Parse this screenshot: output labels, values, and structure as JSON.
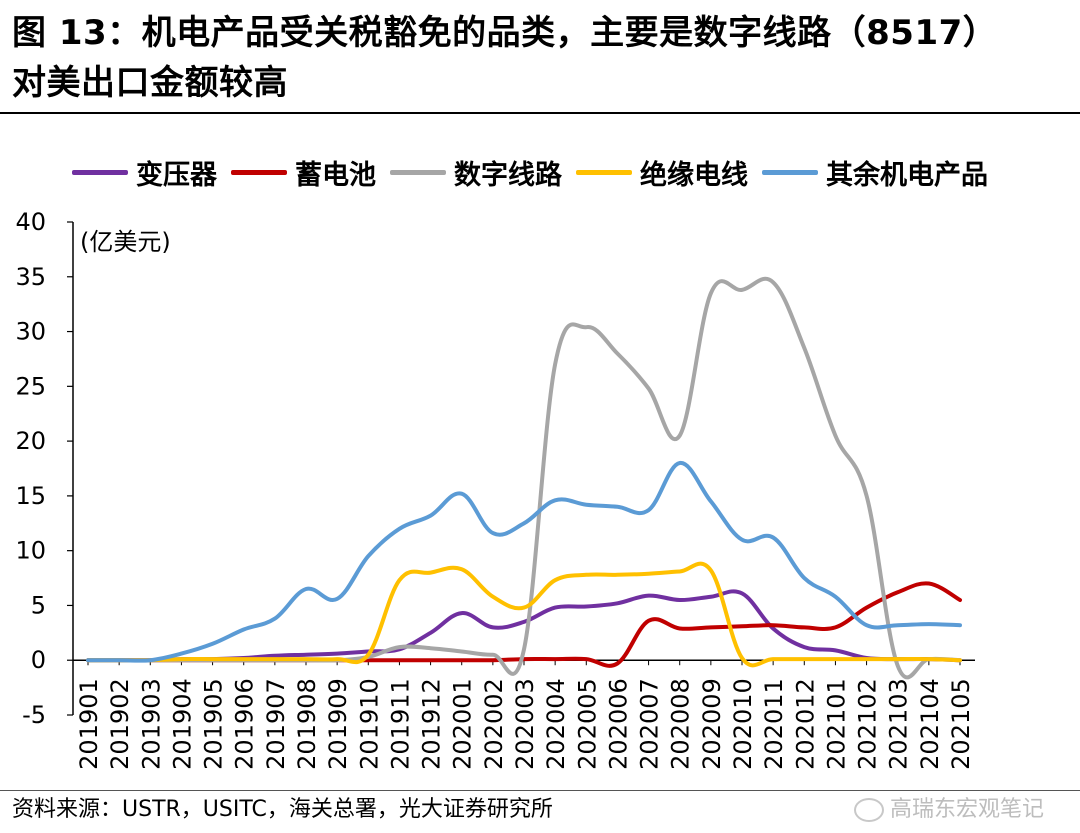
{
  "header": {
    "title_line1": "图 13：机电产品受关税豁免的品类，主要是数字线路（8517）",
    "title_line2": "对美出口金额较高"
  },
  "footer": {
    "source": "资料来源：USTR，USITC，海关总署，光大证券研究所",
    "watermark": "高瑞东宏观笔记",
    "watermark_icon": "wechat-icon"
  },
  "chart_data": {
    "type": "line",
    "title": "机电产品受关税豁免的品类，主要是数字线路（8517）对美出口金额较高",
    "ylabel": "(亿美元)",
    "xlabel": "",
    "ylim": [
      -5,
      40
    ],
    "yticks": [
      40,
      35,
      30,
      25,
      20,
      15,
      10,
      5,
      0,
      -5
    ],
    "legend_position": "top",
    "categories": [
      "201901",
      "201902",
      "201903",
      "201904",
      "201905",
      "201906",
      "201907",
      "201908",
      "201909",
      "201910",
      "201911",
      "201912",
      "202001",
      "202002",
      "202003",
      "202004",
      "202005",
      "202006",
      "202007",
      "202008",
      "202009",
      "202010",
      "202011",
      "202012",
      "202101",
      "202102",
      "202103",
      "202104",
      "202105"
    ],
    "series": [
      {
        "name": "变压器",
        "color": "#7030a0",
        "values": [
          0,
          0,
          0,
          0.1,
          0.1,
          0.2,
          0.4,
          0.5,
          0.6,
          0.8,
          1.0,
          2.5,
          4.3,
          3.0,
          3.5,
          4.8,
          4.9,
          5.2,
          5.9,
          5.5,
          5.8,
          6.1,
          2.9,
          1.2,
          0.9,
          0.2,
          0.1,
          0.1,
          0
        ]
      },
      {
        "name": "蓄电池",
        "color": "#c00000",
        "values": [
          0,
          0,
          0,
          0,
          0,
          0,
          0,
          0,
          0,
          0,
          0,
          0,
          0,
          0,
          0.1,
          0.1,
          0.1,
          -0.3,
          3.6,
          2.9,
          3.0,
          3.1,
          3.2,
          3.0,
          3.0,
          4.8,
          6.2,
          7.0,
          5.5
        ]
      },
      {
        "name": "数字线路",
        "color": "#a6a6a6",
        "values": [
          0,
          0,
          0,
          0,
          0,
          0,
          0,
          0,
          0,
          0.3,
          1.2,
          1.1,
          0.8,
          0.5,
          1.0,
          27.0,
          30.4,
          28.0,
          24.8,
          20.5,
          33.5,
          33.8,
          34.5,
          28.5,
          20.5,
          15.0,
          -0.5,
          0.1,
          0
        ]
      },
      {
        "name": "绝缘电线",
        "color": "#ffc000",
        "values": [
          0,
          0,
          0,
          0.1,
          0.1,
          0.1,
          0.1,
          0.1,
          0.1,
          0.5,
          7.3,
          8.0,
          8.3,
          5.8,
          4.8,
          7.3,
          7.8,
          7.8,
          7.9,
          8.1,
          8.2,
          0.2,
          0.1,
          0.1,
          0.1,
          0.1,
          0.1,
          0.1,
          0
        ]
      },
      {
        "name": "其余机电产品",
        "color": "#5b9bd5",
        "values": [
          0,
          0,
          0,
          0.6,
          1.5,
          2.8,
          3.8,
          6.5,
          5.6,
          9.5,
          12.0,
          13.2,
          15.2,
          11.6,
          12.5,
          14.6,
          14.2,
          14.0,
          13.7,
          18.0,
          14.5,
          11.0,
          11.2,
          7.5,
          5.8,
          3.2,
          3.2,
          3.3,
          3.2
        ]
      }
    ]
  }
}
